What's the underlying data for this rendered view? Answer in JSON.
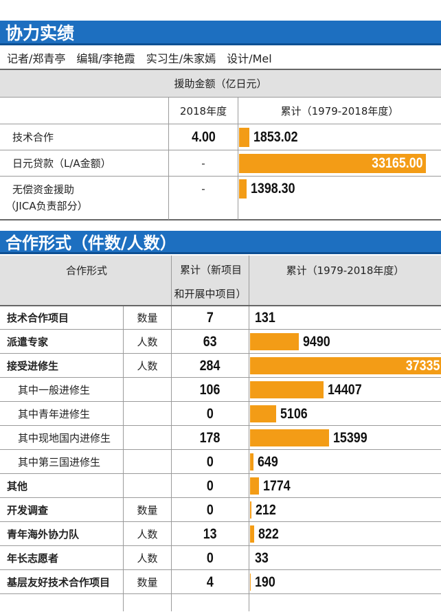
{
  "section1": {
    "title": "协力实绩",
    "credits": "记者/郑青亭　编辑/李艳霞　实习生/朱家嫣　设计/Mel",
    "header_main": "援助金额（亿日元）",
    "col_year": "2018年度",
    "col_cum": "累计（1979-2018年度）",
    "rows": [
      {
        "label": "技术合作",
        "label2": "",
        "year_value": "4.00"
      },
      {
        "label": "日元贷款（L/A金额）",
        "label2": "",
        "year_value": "-"
      },
      {
        "label": "无偿资金援助",
        "label2": "（JICA负责部分）",
        "year_value": "-"
      }
    ]
  },
  "section2": {
    "title": "合作形式（件数/人数）",
    "col_type": "合作形式",
    "col_new1": "累计（新项目",
    "col_new2": "和开展中项目）",
    "col_cum": "累计（1979-2018年度）",
    "rows": [
      {
        "label": "技术合作项目",
        "unit": "数量",
        "new": "7",
        "bold": true
      },
      {
        "label": "派遣专家",
        "unit": "人数",
        "new": "63",
        "bold": true
      },
      {
        "label": "接受进修生",
        "unit": "人数",
        "new": "284",
        "bold": true
      },
      {
        "label": "其中一般进修生",
        "unit": "",
        "new": "106",
        "bold": false
      },
      {
        "label": "其中青年进修生",
        "unit": "",
        "new": "0",
        "bold": false
      },
      {
        "label": "其中现地国内进修生",
        "unit": "",
        "new": "178",
        "bold": false
      },
      {
        "label": "其中第三国进修生",
        "unit": "",
        "new": "0",
        "bold": false
      },
      {
        "label": "其他",
        "unit": "",
        "new": "0",
        "bold": true
      },
      {
        "label": "开发调查",
        "unit": "数量",
        "new": "0",
        "bold": true
      },
      {
        "label": "青年海外协力队",
        "unit": "人数",
        "new": "13",
        "bold": true
      },
      {
        "label": "年长志愿者",
        "unit": "人数",
        "new": "0",
        "bold": true
      },
      {
        "label": "基层友好技术合作项目",
        "unit": "数量",
        "new": "4",
        "bold": true
      }
    ]
  },
  "chart_data": [
    {
      "type": "bar",
      "title": "援助金额（亿日元）",
      "xlabel": "",
      "ylabel": "",
      "categories": [
        "技术合作",
        "日元贷款（L/A金额）",
        "无偿资金援助（JICA负责部分）"
      ],
      "series": [
        {
          "name": "累计（1979-2018年度）",
          "values": [
            1853.02,
            33165.0,
            1398.3
          ],
          "labels": [
            "1853.02",
            "33165.00",
            "1398.30"
          ]
        }
      ],
      "ylim": [
        0,
        33165
      ],
      "orientation": "horizontal",
      "color": "#f39c16"
    },
    {
      "type": "bar",
      "title": "合作形式（件数/人数）",
      "xlabel": "",
      "ylabel": "",
      "categories": [
        "技术合作项目",
        "派遣专家",
        "接受进修生",
        "其中一般进修生",
        "其中青年进修生",
        "其中现地国内进修生",
        "其中第三国进修生",
        "其他",
        "开发调查",
        "青年海外协力队",
        "年长志愿者",
        "基层友好技术合作项目"
      ],
      "series": [
        {
          "name": "累计（1979-2018年度）",
          "values": [
            131,
            9490,
            37335,
            14407,
            5106,
            15399,
            649,
            1774,
            212,
            822,
            33,
            190
          ],
          "labels": [
            "131",
            "9490",
            "37335",
            "14407",
            "5106",
            "15399",
            "649",
            "1774",
            "212",
            "822",
            "33",
            "190"
          ]
        }
      ],
      "ylim": [
        0,
        37335
      ],
      "orientation": "horizontal",
      "color": "#f39c16"
    }
  ]
}
